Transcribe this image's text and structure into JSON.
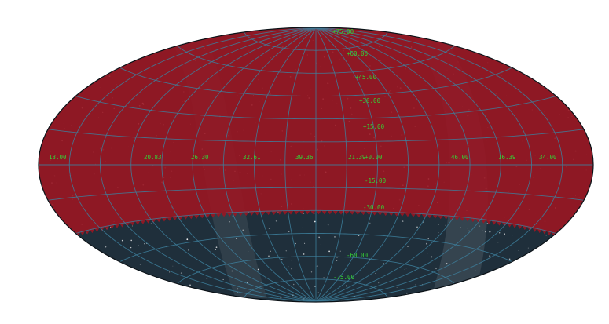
{
  "map": {
    "projection": "aitoff",
    "colors": {
      "background": "#ffffff",
      "sky_dark": "#1f2f3b",
      "footprint_overlay": "#9a1622",
      "grid": "#3d7f9c",
      "label": "#35d035"
    },
    "footprint": {
      "description_hidden": true,
      "dec_boundary_deg": -30,
      "shape": "crenellated"
    },
    "ra_labels": [
      "13.00",
      "20.83",
      "26.30",
      "32.61",
      "39.36",
      "21.39",
      "46.00",
      "16.39",
      "34.00"
    ],
    "dec_labels": [
      "+75.00",
      "+60.00",
      "+45.00",
      "+30.00",
      "+15.00",
      "+0.00",
      "-15.00",
      "-30.00",
      "-60.00",
      "-75.00"
    ]
  }
}
